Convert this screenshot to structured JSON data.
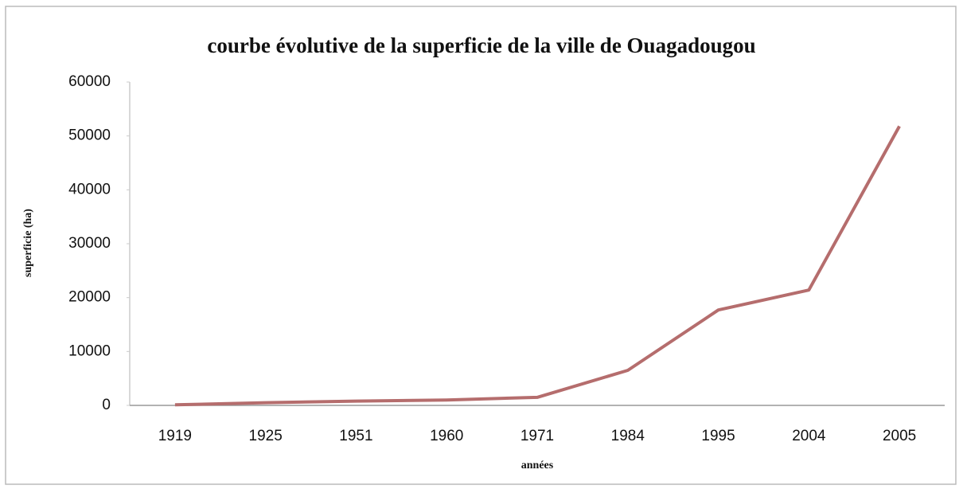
{
  "chart_data": {
    "type": "line",
    "title": "courbe évolutive de la superficie de la ville de Ouagadougou",
    "x_label": "années",
    "y_label": "superficie (ha)",
    "categories": [
      "1919",
      "1925",
      "1951",
      "1960",
      "1971",
      "1984",
      "1995",
      "2004",
      "2005"
    ],
    "series": [
      {
        "name": "superficie",
        "color": "#b56d6d",
        "values": [
          100,
          500,
          800,
          1000,
          1500,
          6500,
          17700,
          21400,
          51800
        ]
      }
    ],
    "ylim": [
      0,
      60000
    ],
    "yticks": [
      0,
      10000,
      20000,
      30000,
      40000,
      50000,
      60000
    ],
    "grid": false
  }
}
